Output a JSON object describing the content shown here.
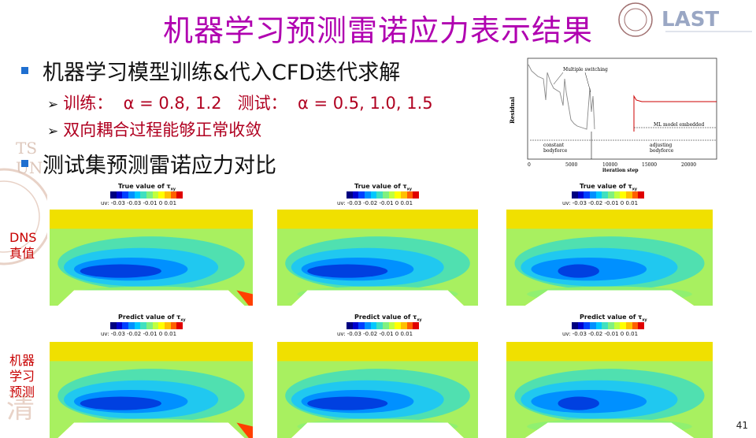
{
  "title": "机器学习预测雷诺应力表示结果",
  "logo_text": "LAST",
  "bullets": [
    {
      "text": "机器学习模型训练&代入CFD迭代求解"
    },
    {
      "text": "测试集预测雷诺应力对比"
    }
  ],
  "subbullets": [
    {
      "prefix": "训练：",
      "value": "α = 0.8, 1.2",
      "prefix2": "测试：",
      "value2": "α = 0.5, 1.0, 1.5"
    },
    {
      "text": "双向耦合过程能够正常收敛"
    }
  ],
  "row_labels": {
    "top_1": "DNS",
    "top_2": "真值",
    "bottom_1": "机器",
    "bottom_2": "学习",
    "bottom_3": "预测"
  },
  "residual_chart": {
    "ylabel": "Residual",
    "xlabel": "iteration step",
    "xticks": [
      "0",
      "5000",
      "10000",
      "15000",
      "20000"
    ],
    "annotations": {
      "switching": "Multiple switching",
      "constant": "constant",
      "constant2": "bodyforce",
      "ml": "ML model embedded",
      "adjusting": "adjusting",
      "adjusting2": "bodyforce"
    },
    "colors": {
      "grey": "#888888",
      "red": "#cc0000"
    }
  },
  "panels": {
    "true_title": "True value of τ",
    "pred_title": "Predict value of τ",
    "subscript": "xy",
    "ticks_a": "uv: -0.03 -0.03 -0.01  0   0.01",
    "ticks_b": "uv: -0.03 -0.02 -0.01  0   0.01",
    "ticks_c": "uv: -0.03 -0.02 -0.01  0   0.01",
    "ticks_d": "uv: -0.03 -0.02 -0.01  0   0.01",
    "ticks_e": "uv: -0.03 -0.02 -0.01  0   0.01",
    "ticks_f": "uv: -0.03 -0.02 -0.01  0   0.01"
  },
  "page_number": "41"
}
